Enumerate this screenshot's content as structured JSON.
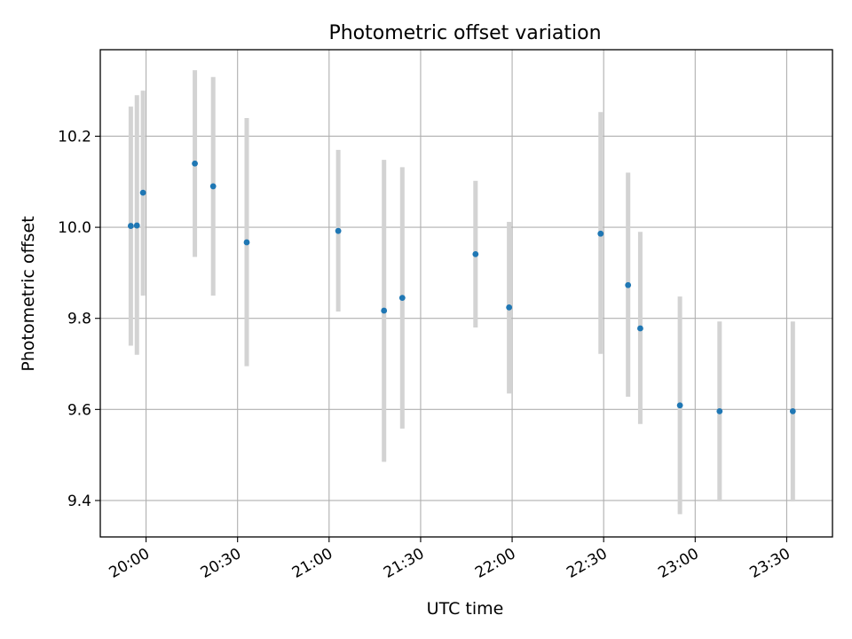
{
  "chart_data": {
    "type": "scatter",
    "title": "Photometric offset variation",
    "xlabel": "UTC time",
    "ylabel": "Photometric offset",
    "xlim": [
      "19:45",
      "23:45"
    ],
    "ylim": [
      9.32,
      10.39
    ],
    "x_ticks": [
      "20:00",
      "20:30",
      "21:00",
      "21:30",
      "22:00",
      "22:30",
      "23:00",
      "23:30"
    ],
    "y_ticks": [
      "9.4",
      "9.6",
      "9.8",
      "10.0",
      "10.2"
    ],
    "grid": true,
    "marker_color": "#1f77b4",
    "errorbar_color": "#d3d3d3",
    "points": [
      {
        "time": "19:55",
        "value": 10.003,
        "low": 9.74,
        "high": 10.265
      },
      {
        "time": "19:57",
        "value": 10.004,
        "low": 9.72,
        "high": 10.29
      },
      {
        "time": "19:59",
        "value": 10.076,
        "low": 9.85,
        "high": 10.3
      },
      {
        "time": "20:16",
        "value": 10.14,
        "low": 9.935,
        "high": 10.345
      },
      {
        "time": "20:22",
        "value": 10.09,
        "low": 9.85,
        "high": 10.33
      },
      {
        "time": "20:33",
        "value": 9.967,
        "low": 9.695,
        "high": 10.24
      },
      {
        "time": "21:03",
        "value": 9.992,
        "low": 9.815,
        "high": 10.17
      },
      {
        "time": "21:18",
        "value": 9.817,
        "low": 9.485,
        "high": 10.148
      },
      {
        "time": "21:24",
        "value": 9.845,
        "low": 9.558,
        "high": 10.132
      },
      {
        "time": "21:48",
        "value": 9.941,
        "low": 9.78,
        "high": 10.102
      },
      {
        "time": "21:59",
        "value": 9.824,
        "low": 9.635,
        "high": 10.012
      },
      {
        "time": "22:29",
        "value": 9.986,
        "low": 9.722,
        "high": 10.253
      },
      {
        "time": "22:38",
        "value": 9.873,
        "low": 9.628,
        "high": 10.12
      },
      {
        "time": "22:42",
        "value": 9.778,
        "low": 9.568,
        "high": 9.99
      },
      {
        "time": "22:55",
        "value": 9.609,
        "low": 9.37,
        "high": 9.848
      },
      {
        "time": "23:08",
        "value": 9.596,
        "low": 9.398,
        "high": 9.793
      },
      {
        "time": "23:32",
        "value": 9.596,
        "low": 9.398,
        "high": 9.793
      }
    ]
  }
}
